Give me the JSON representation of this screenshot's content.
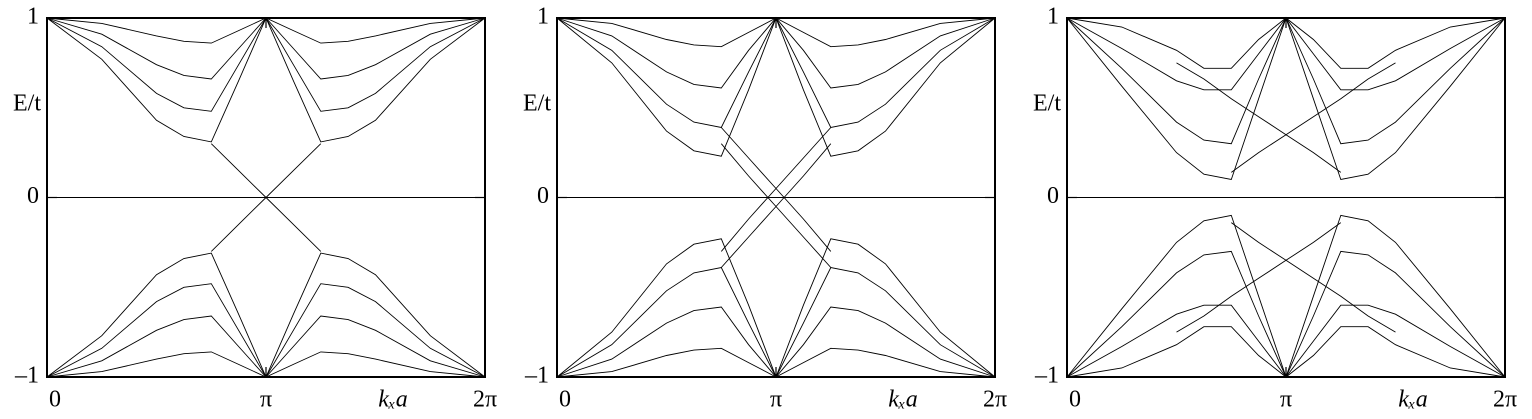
{
  "chart_data": [
    {
      "type": "line",
      "ylabel": "E/t",
      "xlabel": "kₓa",
      "x": [
        0,
        0.7854,
        1.5708,
        1.9635,
        2.3562,
        2.7489,
        3.1416,
        3.5343,
        3.927,
        4.3197,
        4.7124,
        5.4978,
        6.2832
      ],
      "xlim": [
        0,
        6.2832
      ],
      "ylim": [
        -1,
        1
      ],
      "xticks": [
        0,
        {
          "value": 3.1416,
          "label": "π"
        },
        {
          "value": 6.2832,
          "label": "2π"
        }
      ],
      "yticks": [
        {
          "value": -1,
          "label": "–1"
        },
        0,
        1
      ],
      "series": [
        {
          "color": "#000000",
          "values": [
            1,
            0.77,
            0.43,
            0.34,
            0.31,
            0.65,
            1,
            0.65,
            0.31,
            0.34,
            0.43,
            0.77,
            1
          ]
        },
        {
          "color": "#000000",
          "values": [
            1,
            0.84,
            0.58,
            0.5,
            0.48,
            0.74,
            1,
            0.74,
            0.48,
            0.5,
            0.58,
            0.84,
            1
          ]
        },
        {
          "color": "#000000",
          "values": [
            1,
            0.91,
            0.74,
            0.68,
            0.66,
            0.83,
            1,
            0.83,
            0.66,
            0.68,
            0.74,
            0.91,
            1
          ]
        },
        {
          "color": "#000000",
          "values": [
            1,
            0.97,
            0.9,
            0.87,
            0.86,
            0.93,
            1,
            0.93,
            0.86,
            0.87,
            0.9,
            0.97,
            1
          ]
        },
        {
          "color": "#000000",
          "values": [
            -1,
            -0.77,
            -0.43,
            -0.34,
            -0.31,
            -0.65,
            -1,
            -0.65,
            -0.31,
            -0.34,
            -0.43,
            -0.77,
            -1
          ]
        },
        {
          "color": "#000000",
          "values": [
            -1,
            -0.84,
            -0.58,
            -0.5,
            -0.48,
            -0.74,
            -1,
            -0.74,
            -0.48,
            -0.5,
            -0.58,
            -0.84,
            -1
          ]
        },
        {
          "color": "#000000",
          "values": [
            -1,
            -0.91,
            -0.74,
            -0.68,
            -0.66,
            -0.83,
            -1,
            -0.83,
            -0.66,
            -0.68,
            -0.74,
            -0.91,
            -1
          ]
        },
        {
          "color": "#000000",
          "values": [
            -1,
            -0.97,
            -0.9,
            -0.87,
            -0.86,
            -0.93,
            -1,
            -0.93,
            -0.86,
            -0.87,
            -0.9,
            -0.97,
            -1
          ]
        },
        {
          "color": "#000000",
          "values": [
            null,
            null,
            null,
            null,
            0.3,
            0.15,
            0,
            -0.15,
            -0.3,
            null,
            null,
            null,
            null
          ]
        },
        {
          "color": "#000000",
          "values": [
            null,
            null,
            null,
            null,
            -0.3,
            -0.15,
            0,
            0.15,
            0.3,
            null,
            null,
            null,
            null
          ]
        },
        {
          "color": "#000000",
          "values": [
            0,
            0,
            0,
            0,
            0,
            0,
            0,
            0,
            0,
            0,
            0,
            0,
            0
          ]
        }
      ]
    },
    {
      "type": "line",
      "ylabel": "E/t",
      "xlabel": "kₓa",
      "x": [
        0,
        0.7854,
        1.5708,
        1.9635,
        2.3562,
        2.7489,
        3.1416,
        3.5343,
        3.927,
        4.3197,
        4.7124,
        5.4978,
        6.2832
      ],
      "xlim": [
        0,
        6.2832
      ],
      "ylim": [
        -1,
        1
      ],
      "xticks": [
        0,
        {
          "value": 3.1416,
          "label": "π"
        },
        {
          "value": 6.2832,
          "label": "2π"
        }
      ],
      "yticks": [
        {
          "value": -1,
          "label": "–1"
        },
        0,
        1
      ],
      "series": [
        {
          "color": "#000000",
          "values": [
            1,
            0.75,
            0.37,
            0.26,
            0.23,
            0.6,
            1,
            0.6,
            0.23,
            0.26,
            0.37,
            0.75,
            1
          ]
        },
        {
          "color": "#000000",
          "values": [
            1,
            0.82,
            0.52,
            0.42,
            0.39,
            0.7,
            1,
            0.7,
            0.39,
            0.42,
            0.52,
            0.82,
            1
          ]
        },
        {
          "color": "#000000",
          "values": [
            1,
            0.9,
            0.7,
            0.63,
            0.61,
            0.82,
            1,
            0.82,
            0.61,
            0.63,
            0.7,
            0.9,
            1
          ]
        },
        {
          "color": "#000000",
          "values": [
            1,
            0.97,
            0.88,
            0.85,
            0.84,
            0.92,
            1,
            0.92,
            0.84,
            0.85,
            0.88,
            0.97,
            1
          ]
        },
        {
          "color": "#000000",
          "values": [
            -1,
            -0.75,
            -0.37,
            -0.26,
            -0.23,
            -0.6,
            -1,
            -0.6,
            -0.23,
            -0.26,
            -0.37,
            -0.75,
            -1
          ]
        },
        {
          "color": "#000000",
          "values": [
            -1,
            -0.82,
            -0.52,
            -0.42,
            -0.39,
            -0.7,
            -1,
            -0.7,
            -0.39,
            -0.42,
            -0.52,
            -0.82,
            -1
          ]
        },
        {
          "color": "#000000",
          "values": [
            -1,
            -0.9,
            -0.7,
            -0.63,
            -0.61,
            -0.82,
            -1,
            -0.82,
            -0.61,
            -0.63,
            -0.7,
            -0.9,
            -1
          ]
        },
        {
          "color": "#000000",
          "values": [
            -1,
            -0.97,
            -0.88,
            -0.85,
            -0.84,
            -0.92,
            -1,
            -0.92,
            -0.84,
            -0.85,
            -0.88,
            -0.97,
            -1
          ]
        },
        {
          "color": "#000000",
          "values": [
            null,
            null,
            null,
            null,
            0.39,
            0.22,
            0.05,
            -0.12,
            -0.3,
            null,
            null,
            null,
            null
          ]
        },
        {
          "color": "#000000",
          "values": [
            null,
            null,
            null,
            null,
            -0.3,
            -0.12,
            0.05,
            0.22,
            0.39,
            null,
            null,
            null,
            null
          ]
        },
        {
          "color": "#000000",
          "values": [
            null,
            null,
            null,
            null,
            0.3,
            0.12,
            -0.05,
            -0.22,
            -0.39,
            null,
            null,
            null,
            null
          ]
        },
        {
          "color": "#000000",
          "values": [
            null,
            null,
            null,
            null,
            -0.39,
            -0.22,
            -0.05,
            0.12,
            0.3,
            null,
            null,
            null,
            null
          ]
        },
        {
          "color": "#000000",
          "values": [
            0,
            0,
            0,
            0,
            0,
            0,
            0,
            0,
            0,
            0,
            0,
            0,
            0
          ]
        }
      ]
    },
    {
      "type": "line",
      "ylabel": "E/t",
      "xlabel": "kₓa",
      "x": [
        0,
        0.7854,
        1.5708,
        1.9635,
        2.3562,
        2.7489,
        3.1416,
        3.5343,
        3.927,
        4.3197,
        4.7124,
        5.4978,
        6.2832
      ],
      "xlim": [
        0,
        6.2832
      ],
      "ylim": [
        -1,
        1
      ],
      "xticks": [
        0,
        {
          "value": 3.1416,
          "label": "π"
        },
        {
          "value": 6.2832,
          "label": "2π"
        }
      ],
      "yticks": [
        {
          "value": -1,
          "label": "–1"
        },
        0,
        1
      ],
      "series": [
        {
          "color": "#000000",
          "values": [
            1,
            0.62,
            0.25,
            0.13,
            0.1,
            0.55,
            1,
            0.55,
            0.1,
            0.13,
            0.25,
            0.62,
            1
          ]
        },
        {
          "color": "#000000",
          "values": [
            1,
            0.72,
            0.42,
            0.32,
            0.3,
            0.66,
            1,
            0.66,
            0.3,
            0.32,
            0.42,
            0.72,
            1
          ]
        },
        {
          "color": "#000000",
          "values": [
            1,
            0.83,
            0.65,
            0.6,
            0.6,
            0.8,
            1,
            0.8,
            0.6,
            0.6,
            0.65,
            0.83,
            1
          ]
        },
        {
          "color": "#000000",
          "values": [
            1,
            0.95,
            0.82,
            0.72,
            0.72,
            0.88,
            1,
            0.88,
            0.72,
            0.72,
            0.82,
            0.95,
            1
          ]
        },
        {
          "color": "#000000",
          "values": [
            -1,
            -0.62,
            -0.25,
            -0.13,
            -0.1,
            -0.55,
            -1,
            -0.55,
            -0.1,
            -0.13,
            -0.25,
            -0.62,
            -1
          ]
        },
        {
          "color": "#000000",
          "values": [
            -1,
            -0.72,
            -0.42,
            -0.32,
            -0.3,
            -0.66,
            -1,
            -0.66,
            -0.3,
            -0.32,
            -0.42,
            -0.72,
            -1
          ]
        },
        {
          "color": "#000000",
          "values": [
            -1,
            -0.83,
            -0.65,
            -0.6,
            -0.6,
            -0.8,
            -1,
            -0.8,
            -0.6,
            -0.6,
            -0.65,
            -0.83,
            -1
          ]
        },
        {
          "color": "#000000",
          "values": [
            -1,
            -0.95,
            -0.82,
            -0.72,
            -0.72,
            -0.88,
            -1,
            -0.88,
            -0.72,
            -0.72,
            -0.82,
            -0.95,
            -1
          ]
        },
        {
          "color": "#000000",
          "values": [
            null,
            null,
            0.75,
            0.66,
            0.55,
            0.45,
            0.35,
            0.25,
            0.14,
            null,
            null,
            null,
            null
          ]
        },
        {
          "color": "#000000",
          "values": [
            null,
            null,
            null,
            null,
            0.14,
            0.25,
            0.35,
            0.45,
            0.55,
            0.66,
            0.75,
            null,
            null
          ]
        },
        {
          "color": "#000000",
          "values": [
            null,
            null,
            -0.75,
            -0.66,
            -0.55,
            -0.45,
            -0.35,
            -0.25,
            -0.14,
            null,
            null,
            null,
            null
          ]
        },
        {
          "color": "#000000",
          "values": [
            null,
            null,
            null,
            null,
            -0.14,
            -0.25,
            -0.35,
            -0.45,
            -0.55,
            -0.66,
            -0.75,
            null,
            null
          ]
        },
        {
          "color": "#000000",
          "values": [
            0,
            0,
            0,
            0,
            0,
            0,
            0,
            0,
            0,
            0,
            0,
            0,
            0
          ]
        }
      ]
    }
  ]
}
